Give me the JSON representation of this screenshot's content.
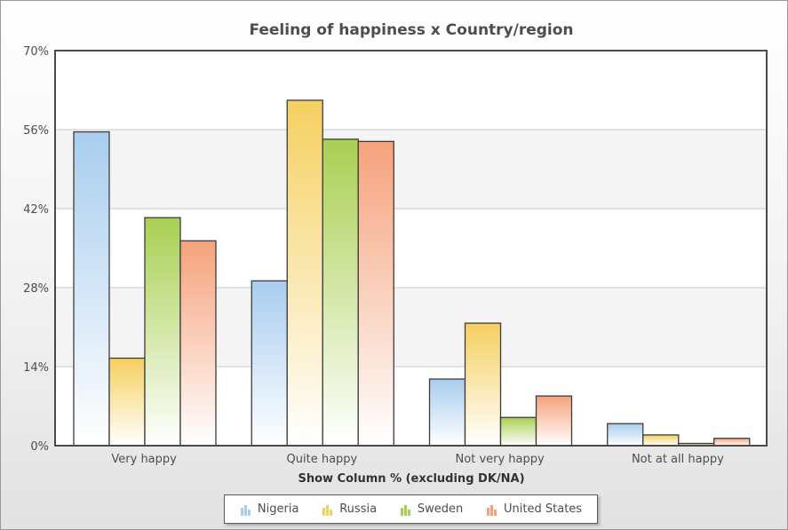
{
  "chart_data": {
    "type": "bar",
    "title": "Feeling of happiness x Country/region",
    "xlabel": "Show Column % (excluding DK/NA)",
    "ylabel": "",
    "ylim": [
      0,
      70
    ],
    "yticks": [
      "0%",
      "14%",
      "28%",
      "42%",
      "56%",
      "70%"
    ],
    "ytick_values": [
      0,
      14,
      28,
      42,
      56,
      70
    ],
    "grid": true,
    "legend_position": "bottom",
    "categories": [
      "Very happy",
      "Quite happy",
      "Not very happy",
      "Not at all happy"
    ],
    "series": [
      {
        "name": "Nigeria",
        "values": [
          55.6,
          29.2,
          11.8,
          3.9
        ],
        "color": "#a8cdee"
      },
      {
        "name": "Russia",
        "values": [
          15.5,
          61.2,
          21.7,
          1.9
        ],
        "color": "#f5d060"
      },
      {
        "name": "Sweden",
        "values": [
          40.4,
          54.3,
          5.0,
          0.4
        ],
        "color": "#a9cf52"
      },
      {
        "name": "United States",
        "values": [
          36.3,
          53.9,
          8.8,
          1.3
        ],
        "color": "#f5a27c"
      }
    ]
  }
}
